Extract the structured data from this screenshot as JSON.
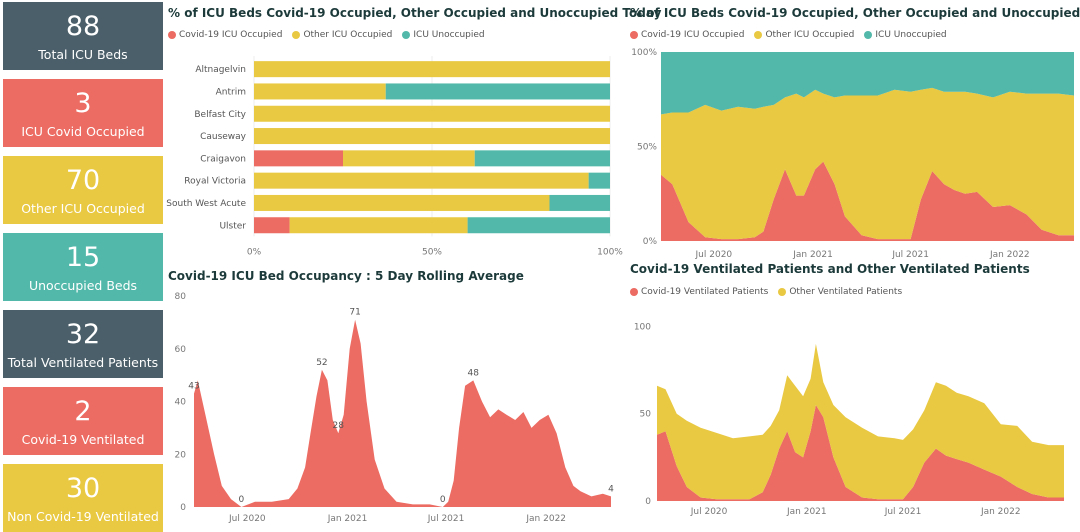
{
  "colors": {
    "covid": "#ec6b62",
    "other": "#e9c842",
    "unoccupied": "#52b8a9",
    "dark": "#4a5f69"
  },
  "cards": [
    {
      "value": "88",
      "label": "Total ICU Beds",
      "color": "#4a5f69"
    },
    {
      "value": "3",
      "label": "ICU Covid Occupied",
      "color": "#ec6b62"
    },
    {
      "value": "70",
      "label": "Other ICU Occupied",
      "color": "#e9c842"
    },
    {
      "value": "15",
      "label": "Unoccupied Beds",
      "color": "#52b8a9"
    },
    {
      "value": "32",
      "label": "Total Ventilated Patients",
      "color": "#4a5f69"
    },
    {
      "value": "2",
      "label": "Covid-19 Ventilated",
      "color": "#ec6b62"
    },
    {
      "value": "30",
      "label": "Non Covid-19 Ventilated",
      "color": "#e9c842"
    }
  ],
  "chart_data": [
    {
      "id": "today",
      "type": "bar",
      "orientation": "horizontal",
      "stacked": "100%",
      "title": "% of ICU Beds Covid-19 Occupied, Other Occupied and Unoccupied Today",
      "legend": [
        "Covid-19 ICU Occupied",
        "Other ICU Occupied",
        "ICU Unoccupied"
      ],
      "categories": [
        "Altnagelvin",
        "Antrim",
        "Belfast City",
        "Causeway",
        "Craigavon",
        "Royal Victoria",
        "South West Acute",
        "Ulster"
      ],
      "series": [
        {
          "name": "Covid-19 ICU Occupied",
          "values": [
            0,
            0,
            0,
            0,
            25,
            0,
            0,
            10
          ]
        },
        {
          "name": "Other ICU Occupied",
          "values": [
            100,
            37,
            100,
            100,
            37,
            94,
            83,
            50
          ]
        },
        {
          "name": "ICU Unoccupied",
          "values": [
            0,
            63,
            0,
            0,
            38,
            6,
            17,
            40
          ]
        }
      ],
      "xticks": [
        "0%",
        "50%",
        "100%"
      ]
    },
    {
      "id": "pct_over_time",
      "type": "area",
      "stacked": "100%",
      "title": "% of ICU Beds Covid-19 Occupied, Other Occupied and Unoccupied",
      "legend": [
        "Covid-19 ICU Occupied",
        "Other ICU Occupied",
        "ICU Unoccupied"
      ],
      "yticks": [
        "0%",
        "50%",
        "100%"
      ],
      "xticks": [
        "Jul 2020",
        "Jan 2021",
        "Jul 2021",
        "Jan 2022"
      ],
      "x": [
        "2020-03-25",
        "2020-04-15",
        "2020-05-15",
        "2020-06-15",
        "2020-07-15",
        "2020-08-15",
        "2020-09-15",
        "2020-10-01",
        "2020-10-20",
        "2020-11-10",
        "2020-12-01",
        "2020-12-15",
        "2021-01-05",
        "2021-01-20",
        "2021-02-10",
        "2021-03-01",
        "2021-04-01",
        "2021-05-01",
        "2021-06-01",
        "2021-07-01",
        "2021-07-20",
        "2021-08-10",
        "2021-09-01",
        "2021-09-20",
        "2021-10-10",
        "2021-11-01",
        "2021-12-01",
        "2022-01-01",
        "2022-02-01",
        "2022-03-01",
        "2022-04-01",
        "2022-04-30"
      ],
      "series": [
        {
          "name": "Covid-19 ICU Occupied",
          "values": [
            35,
            30,
            10,
            2,
            1,
            1,
            2,
            5,
            22,
            38,
            24,
            24,
            38,
            42,
            30,
            13,
            3,
            1,
            1,
            1,
            22,
            37,
            30,
            27,
            25,
            26,
            18,
            19,
            14,
            6,
            3,
            3
          ]
        },
        {
          "name": "Other ICU Occupied",
          "values": [
            32,
            38,
            58,
            70,
            68,
            70,
            68,
            66,
            50,
            38,
            54,
            52,
            42,
            36,
            46,
            64,
            74,
            76,
            79,
            78,
            58,
            44,
            49,
            52,
            54,
            52,
            58,
            60,
            64,
            72,
            75,
            74
          ]
        },
        {
          "name": "ICU Unoccupied",
          "values": [
            33,
            32,
            32,
            28,
            31,
            29,
            30,
            29,
            28,
            24,
            22,
            24,
            20,
            22,
            24,
            23,
            23,
            23,
            20,
            21,
            20,
            19,
            21,
            21,
            21,
            22,
            24,
            21,
            22,
            22,
            22,
            23
          ]
        }
      ]
    },
    {
      "id": "rolling",
      "type": "area",
      "title": "Covid-19 ICU Bed Occupancy : 5 Day Rolling Average",
      "ylim": [
        0,
        80
      ],
      "yticks": [
        "0",
        "20",
        "40",
        "60",
        "80"
      ],
      "xticks": [
        "Jul 2020",
        "Jan 2021",
        "Jul 2021",
        "Jan 2022"
      ],
      "x": [
        "2020-03-25",
        "2020-04-01",
        "2020-04-15",
        "2020-05-01",
        "2020-05-15",
        "2020-06-01",
        "2020-06-20",
        "2020-07-15",
        "2020-08-15",
        "2020-09-15",
        "2020-10-01",
        "2020-10-15",
        "2020-10-25",
        "2020-11-05",
        "2020-11-15",
        "2020-11-25",
        "2020-12-05",
        "2020-12-15",
        "2020-12-25",
        "2021-01-05",
        "2021-01-15",
        "2021-01-25",
        "2021-02-05",
        "2021-02-20",
        "2021-03-10",
        "2021-04-01",
        "2021-05-01",
        "2021-06-01",
        "2021-06-25",
        "2021-07-05",
        "2021-07-15",
        "2021-07-25",
        "2021-08-05",
        "2021-08-20",
        "2021-09-05",
        "2021-09-20",
        "2021-10-05",
        "2021-10-20",
        "2021-11-05",
        "2021-11-20",
        "2021-12-05",
        "2021-12-20",
        "2022-01-05",
        "2022-01-20",
        "2022-02-05",
        "2022-02-20",
        "2022-03-05",
        "2022-03-25",
        "2022-04-15",
        "2022-04-30"
      ],
      "values": [
        43,
        48,
        35,
        20,
        8,
        3,
        0,
        2,
        2,
        3,
        7,
        15,
        28,
        42,
        52,
        48,
        33,
        28,
        35,
        60,
        71,
        62,
        40,
        18,
        7,
        2,
        1,
        1,
        0,
        2,
        10,
        30,
        46,
        48,
        40,
        34,
        37,
        35,
        33,
        36,
        30,
        33,
        35,
        28,
        15,
        8,
        6,
        4,
        5,
        4
      ],
      "labels": [
        {
          "x": "2020-03-25",
          "value": 43,
          "text": "43"
        },
        {
          "x": "2020-06-20",
          "value": 0,
          "text": "0"
        },
        {
          "x": "2020-11-15",
          "value": 52,
          "text": "52"
        },
        {
          "x": "2020-12-15",
          "value": 28,
          "text": "28"
        },
        {
          "x": "2021-01-15",
          "value": 71,
          "text": "71"
        },
        {
          "x": "2021-06-25",
          "value": 0,
          "text": "0"
        },
        {
          "x": "2021-08-20",
          "value": 48,
          "text": "48"
        },
        {
          "x": "2022-04-30",
          "value": 4,
          "text": "4"
        }
      ]
    },
    {
      "id": "ventilated",
      "type": "area",
      "stacked": true,
      "title": "Covid-19 Ventilated Patients and Other Ventilated Patients",
      "legend": [
        "Covid-19 Ventilated Patients",
        "Other Ventilated Patients"
      ],
      "ylim": [
        0,
        110
      ],
      "yticks": [
        "0",
        "50",
        "100"
      ],
      "xticks": [
        "Jul 2020",
        "Jan 2021",
        "Jul 2021",
        "Jan 2022"
      ],
      "x": [
        "2020-03-25",
        "2020-04-10",
        "2020-05-01",
        "2020-05-20",
        "2020-06-15",
        "2020-07-15",
        "2020-08-15",
        "2020-09-15",
        "2020-10-10",
        "2020-10-25",
        "2020-11-10",
        "2020-11-25",
        "2020-12-10",
        "2020-12-25",
        "2021-01-08",
        "2021-01-18",
        "2021-02-01",
        "2021-02-20",
        "2021-03-15",
        "2021-04-15",
        "2021-05-15",
        "2021-06-15",
        "2021-07-01",
        "2021-07-20",
        "2021-08-10",
        "2021-09-01",
        "2021-09-20",
        "2021-10-10",
        "2021-11-01",
        "2021-12-01",
        "2022-01-01",
        "2022-02-01",
        "2022-03-01",
        "2022-04-01",
        "2022-04-30"
      ],
      "series": [
        {
          "name": "Covid-19 Ventilated Patients",
          "values": [
            38,
            40,
            20,
            8,
            2,
            1,
            1,
            1,
            5,
            15,
            30,
            40,
            28,
            25,
            40,
            55,
            48,
            25,
            8,
            2,
            1,
            1,
            1,
            8,
            22,
            30,
            26,
            24,
            22,
            18,
            14,
            8,
            4,
            2,
            2
          ]
        },
        {
          "name": "Other Ventilated Patients",
          "values": [
            28,
            24,
            30,
            38,
            40,
            38,
            35,
            36,
            33,
            28,
            22,
            32,
            38,
            35,
            30,
            35,
            20,
            30,
            40,
            40,
            36,
            35,
            34,
            33,
            30,
            38,
            40,
            38,
            38,
            38,
            30,
            35,
            30,
            30,
            30
          ]
        }
      ]
    }
  ]
}
